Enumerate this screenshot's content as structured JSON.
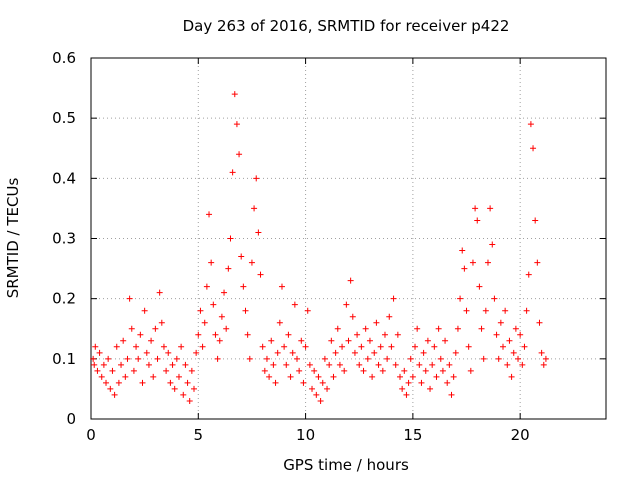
{
  "chart_data": {
    "type": "scatter",
    "title": "Day 263 of 2016, SRMTID for receiver p422",
    "xlabel": "GPS time / hours",
    "ylabel": "SRMTID / TECUs",
    "xlim": [
      0,
      24
    ],
    "ylim": [
      0,
      0.6
    ],
    "xticks": [
      0,
      5,
      10,
      15,
      20
    ],
    "xtick_labels": [
      "0",
      "5",
      "10",
      "15",
      "20"
    ],
    "yticks": [
      0,
      0.1,
      0.2,
      0.3,
      0.4,
      0.5,
      0.6
    ],
    "ytick_labels": [
      "0",
      "0.1",
      "0.2",
      "0.3",
      "0.4",
      "0.5",
      "0.6"
    ],
    "grid": true,
    "marker": "+",
    "color": "#ff0000",
    "series": [
      {
        "name": "SRMTID",
        "points": [
          [
            0.1,
            0.1
          ],
          [
            0.15,
            0.09
          ],
          [
            0.2,
            0.12
          ],
          [
            0.3,
            0.08
          ],
          [
            0.4,
            0.11
          ],
          [
            0.5,
            0.07
          ],
          [
            0.6,
            0.09
          ],
          [
            0.7,
            0.06
          ],
          [
            0.8,
            0.1
          ],
          [
            0.9,
            0.05
          ],
          [
            1.0,
            0.08
          ],
          [
            1.1,
            0.04
          ],
          [
            1.2,
            0.12
          ],
          [
            1.3,
            0.06
          ],
          [
            1.4,
            0.09
          ],
          [
            1.5,
            0.13
          ],
          [
            1.6,
            0.07
          ],
          [
            1.7,
            0.1
          ],
          [
            1.8,
            0.2
          ],
          [
            1.9,
            0.15
          ],
          [
            2.0,
            0.08
          ],
          [
            2.1,
            0.12
          ],
          [
            2.2,
            0.1
          ],
          [
            2.3,
            0.14
          ],
          [
            2.4,
            0.06
          ],
          [
            2.5,
            0.18
          ],
          [
            2.6,
            0.11
          ],
          [
            2.7,
            0.09
          ],
          [
            2.8,
            0.13
          ],
          [
            2.9,
            0.07
          ],
          [
            3.0,
            0.15
          ],
          [
            3.1,
            0.1
          ],
          [
            3.2,
            0.21
          ],
          [
            3.3,
            0.16
          ],
          [
            3.4,
            0.12
          ],
          [
            3.5,
            0.08
          ],
          [
            3.6,
            0.11
          ],
          [
            3.7,
            0.06
          ],
          [
            3.8,
            0.09
          ],
          [
            3.9,
            0.05
          ],
          [
            4.0,
            0.1
          ],
          [
            4.1,
            0.07
          ],
          [
            4.2,
            0.12
          ],
          [
            4.3,
            0.04
          ],
          [
            4.4,
            0.09
          ],
          [
            4.5,
            0.06
          ],
          [
            4.6,
            0.03
          ],
          [
            4.7,
            0.08
          ],
          [
            4.8,
            0.05
          ],
          [
            4.9,
            0.11
          ],
          [
            5.0,
            0.14
          ],
          [
            5.1,
            0.18
          ],
          [
            5.2,
            0.12
          ],
          [
            5.3,
            0.16
          ],
          [
            5.4,
            0.22
          ],
          [
            5.5,
            0.34
          ],
          [
            5.6,
            0.26
          ],
          [
            5.7,
            0.19
          ],
          [
            5.8,
            0.14
          ],
          [
            5.9,
            0.1
          ],
          [
            6.0,
            0.13
          ],
          [
            6.1,
            0.17
          ],
          [
            6.2,
            0.21
          ],
          [
            6.3,
            0.15
          ],
          [
            6.4,
            0.25
          ],
          [
            6.5,
            0.3
          ],
          [
            6.6,
            0.41
          ],
          [
            6.7,
            0.54
          ],
          [
            6.8,
            0.49
          ],
          [
            6.9,
            0.44
          ],
          [
            7.0,
            0.27
          ],
          [
            7.1,
            0.22
          ],
          [
            7.2,
            0.18
          ],
          [
            7.3,
            0.14
          ],
          [
            7.4,
            0.1
          ],
          [
            7.5,
            0.26
          ],
          [
            7.6,
            0.35
          ],
          [
            7.7,
            0.4
          ],
          [
            7.8,
            0.31
          ],
          [
            7.9,
            0.24
          ],
          [
            8.0,
            0.12
          ],
          [
            8.1,
            0.08
          ],
          [
            8.2,
            0.1
          ],
          [
            8.3,
            0.07
          ],
          [
            8.4,
            0.13
          ],
          [
            8.5,
            0.09
          ],
          [
            8.6,
            0.06
          ],
          [
            8.7,
            0.11
          ],
          [
            8.8,
            0.16
          ],
          [
            8.9,
            0.22
          ],
          [
            9.0,
            0.12
          ],
          [
            9.1,
            0.09
          ],
          [
            9.2,
            0.14
          ],
          [
            9.3,
            0.07
          ],
          [
            9.4,
            0.11
          ],
          [
            9.5,
            0.19
          ],
          [
            9.6,
            0.1
          ],
          [
            9.7,
            0.08
          ],
          [
            9.8,
            0.13
          ],
          [
            9.9,
            0.06
          ],
          [
            10.0,
            0.12
          ],
          [
            10.1,
            0.18
          ],
          [
            10.2,
            0.09
          ],
          [
            10.3,
            0.05
          ],
          [
            10.4,
            0.08
          ],
          [
            10.5,
            0.04
          ],
          [
            10.6,
            0.07
          ],
          [
            10.7,
            0.03
          ],
          [
            10.8,
            0.06
          ],
          [
            10.9,
            0.1
          ],
          [
            11.0,
            0.05
          ],
          [
            11.1,
            0.09
          ],
          [
            11.2,
            0.13
          ],
          [
            11.3,
            0.07
          ],
          [
            11.4,
            0.11
          ],
          [
            11.5,
            0.15
          ],
          [
            11.6,
            0.09
          ],
          [
            11.7,
            0.12
          ],
          [
            11.8,
            0.08
          ],
          [
            11.9,
            0.19
          ],
          [
            12.0,
            0.13
          ],
          [
            12.1,
            0.23
          ],
          [
            12.2,
            0.17
          ],
          [
            12.3,
            0.11
          ],
          [
            12.4,
            0.14
          ],
          [
            12.5,
            0.09
          ],
          [
            12.6,
            0.12
          ],
          [
            12.7,
            0.08
          ],
          [
            12.8,
            0.15
          ],
          [
            12.9,
            0.1
          ],
          [
            13.0,
            0.13
          ],
          [
            13.1,
            0.07
          ],
          [
            13.2,
            0.11
          ],
          [
            13.3,
            0.16
          ],
          [
            13.4,
            0.09
          ],
          [
            13.5,
            0.12
          ],
          [
            13.6,
            0.08
          ],
          [
            13.7,
            0.14
          ],
          [
            13.8,
            0.1
          ],
          [
            13.9,
            0.17
          ],
          [
            14.0,
            0.12
          ],
          [
            14.1,
            0.2
          ],
          [
            14.2,
            0.09
          ],
          [
            14.3,
            0.14
          ],
          [
            14.4,
            0.07
          ],
          [
            14.5,
            0.05
          ],
          [
            14.6,
            0.08
          ],
          [
            14.7,
            0.04
          ],
          [
            14.8,
            0.06
          ],
          [
            14.9,
            0.1
          ],
          [
            15.0,
            0.07
          ],
          [
            15.1,
            0.12
          ],
          [
            15.2,
            0.15
          ],
          [
            15.3,
            0.09
          ],
          [
            15.4,
            0.06
          ],
          [
            15.5,
            0.11
          ],
          [
            15.6,
            0.08
          ],
          [
            15.7,
            0.13
          ],
          [
            15.8,
            0.05
          ],
          [
            15.9,
            0.09
          ],
          [
            16.0,
            0.12
          ],
          [
            16.1,
            0.07
          ],
          [
            16.2,
            0.15
          ],
          [
            16.3,
            0.1
          ],
          [
            16.4,
            0.08
          ],
          [
            16.5,
            0.13
          ],
          [
            16.6,
            0.06
          ],
          [
            16.7,
            0.09
          ],
          [
            16.8,
            0.04
          ],
          [
            16.9,
            0.07
          ],
          [
            17.0,
            0.11
          ],
          [
            17.1,
            0.15
          ],
          [
            17.2,
            0.2
          ],
          [
            17.3,
            0.28
          ],
          [
            17.4,
            0.25
          ],
          [
            17.5,
            0.18
          ],
          [
            17.6,
            0.12
          ],
          [
            17.7,
            0.08
          ],
          [
            17.8,
            0.26
          ],
          [
            17.9,
            0.35
          ],
          [
            18.0,
            0.33
          ],
          [
            18.1,
            0.22
          ],
          [
            18.2,
            0.15
          ],
          [
            18.3,
            0.1
          ],
          [
            18.4,
            0.18
          ],
          [
            18.5,
            0.26
          ],
          [
            18.6,
            0.35
          ],
          [
            18.7,
            0.29
          ],
          [
            18.8,
            0.2
          ],
          [
            18.9,
            0.14
          ],
          [
            19.0,
            0.1
          ],
          [
            19.1,
            0.16
          ],
          [
            19.2,
            0.12
          ],
          [
            19.3,
            0.18
          ],
          [
            19.4,
            0.09
          ],
          [
            19.5,
            0.13
          ],
          [
            19.6,
            0.07
          ],
          [
            19.7,
            0.11
          ],
          [
            19.8,
            0.15
          ],
          [
            19.9,
            0.1
          ],
          [
            20.0,
            0.14
          ],
          [
            20.1,
            0.09
          ],
          [
            20.2,
            0.12
          ],
          [
            20.3,
            0.18
          ],
          [
            20.4,
            0.24
          ],
          [
            20.5,
            0.49
          ],
          [
            20.6,
            0.45
          ],
          [
            20.7,
            0.33
          ],
          [
            20.8,
            0.26
          ],
          [
            20.9,
            0.16
          ],
          [
            21.0,
            0.11
          ],
          [
            21.1,
            0.09
          ],
          [
            21.2,
            0.1
          ]
        ]
      }
    ]
  }
}
